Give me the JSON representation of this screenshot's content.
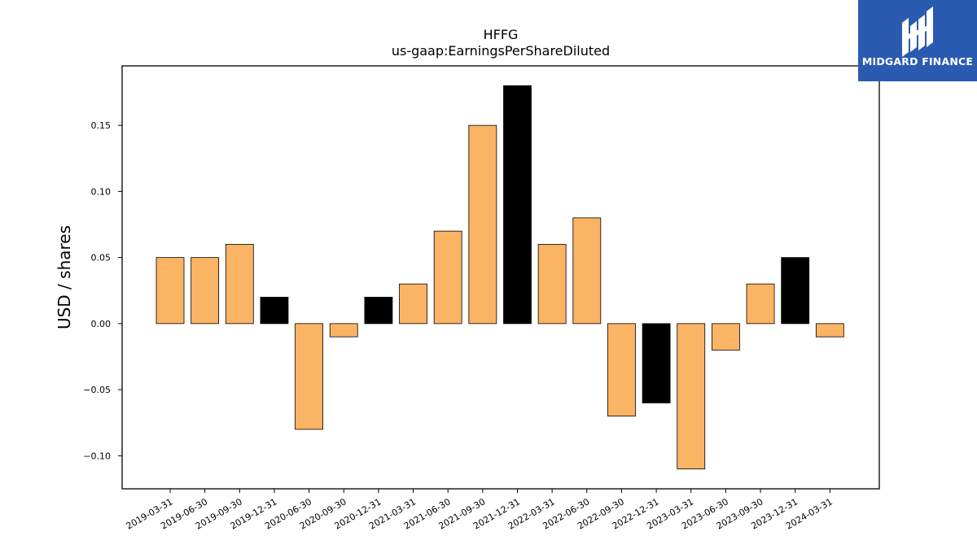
{
  "chart_data": {
    "type": "bar",
    "title": "HFFG",
    "subtitle": "us-gaap:EarningsPerShareDiluted",
    "xlabel": "",
    "ylabel": "USD / shares",
    "ylim": [
      -0.125,
      0.195
    ],
    "yticks": [
      -0.1,
      -0.05,
      0.0,
      0.05,
      0.1,
      0.15
    ],
    "ytick_labels": [
      "−0.10",
      "−0.05",
      "0.00",
      "0.05",
      "0.10",
      "0.15"
    ],
    "grid": false,
    "categories": [
      "2019-03-31",
      "2019-06-30",
      "2019-09-30",
      "2019-12-31",
      "2020-06-30",
      "2020-09-30",
      "2020-12-31",
      "2021-03-31",
      "2021-06-30",
      "2021-09-30",
      "2021-12-31",
      "2022-03-31",
      "2022-06-30",
      "2022-09-30",
      "2022-12-31",
      "2023-03-31",
      "2023-06-30",
      "2023-09-30",
      "2023-12-31",
      "2024-03-31"
    ],
    "values": [
      0.05,
      0.05,
      0.06,
      0.02,
      -0.08,
      -0.01,
      0.02,
      0.03,
      0.07,
      0.15,
      0.18,
      0.06,
      0.08,
      -0.07,
      -0.06,
      -0.11,
      -0.02,
      0.03,
      0.05,
      -0.01
    ],
    "bar_colors": [
      "#fbb464",
      "#fbb464",
      "#fbb464",
      "#000000",
      "#fbb464",
      "#fbb464",
      "#000000",
      "#fbb464",
      "#fbb464",
      "#fbb464",
      "#000000",
      "#fbb464",
      "#fbb464",
      "#fbb464",
      "#000000",
      "#fbb464",
      "#fbb464",
      "#fbb464",
      "#000000",
      "#fbb464"
    ]
  },
  "logo": {
    "text": "MIDGARD FINANCE",
    "background": "#2b5bb0"
  }
}
